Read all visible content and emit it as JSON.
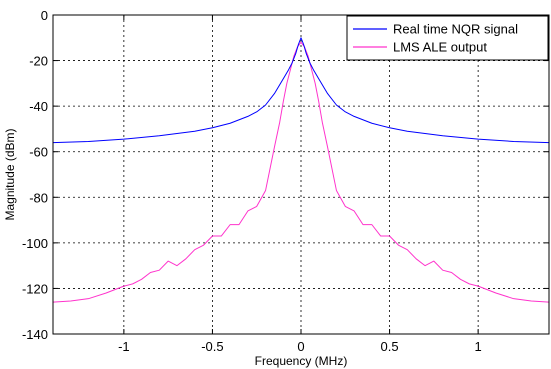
{
  "chart_data": {
    "type": "line",
    "title": "",
    "xlabel": "Frequency (MHz)",
    "ylabel": "Magnitude (dBm)",
    "xlim": [
      -1.4,
      1.4
    ],
    "ylim": [
      -140,
      0
    ],
    "x_ticks": [
      -1,
      -0.5,
      0,
      0.5,
      1
    ],
    "x_tick_labels": [
      "-1",
      "-0.5",
      "0",
      "0.5",
      "1"
    ],
    "y_ticks": [
      0,
      -20,
      -40,
      -60,
      -80,
      -100,
      -120,
      -140
    ],
    "y_tick_labels": [
      "0",
      "-20",
      "-40",
      "-60",
      "-80",
      "-100",
      "-120",
      "-140"
    ],
    "grid": true,
    "legend_position": "top-right",
    "series": [
      {
        "name": "Real time NQR signal",
        "color": "#0000ff",
        "x": [
          -1.4,
          -1.2,
          -1.0,
          -0.8,
          -0.6,
          -0.5,
          -0.4,
          -0.3,
          -0.25,
          -0.2,
          -0.15,
          -0.1,
          -0.07,
          -0.05,
          -0.03,
          -0.015,
          0,
          0.015,
          0.03,
          0.05,
          0.07,
          0.1,
          0.15,
          0.2,
          0.25,
          0.3,
          0.4,
          0.5,
          0.6,
          0.8,
          1.0,
          1.2,
          1.4
        ],
        "y": [
          -56,
          -55.5,
          -54.5,
          -53,
          -51,
          -49.5,
          -47.5,
          -44.5,
          -42.5,
          -39.5,
          -34.5,
          -28,
          -24,
          -21,
          -17,
          -13,
          -10,
          -13,
          -17,
          -21,
          -24,
          -28,
          -34.5,
          -39.5,
          -42.5,
          -44.5,
          -47.5,
          -49.5,
          -51,
          -53,
          -54.5,
          -55.5,
          -56
        ]
      },
      {
        "name": "LMS ALE output",
        "color": "#ff33cc",
        "x": [
          -1.4,
          -1.3,
          -1.2,
          -1.1,
          -1.0,
          -0.95,
          -0.9,
          -0.85,
          -0.8,
          -0.75,
          -0.7,
          -0.65,
          -0.6,
          -0.55,
          -0.5,
          -0.45,
          -0.4,
          -0.35,
          -0.3,
          -0.25,
          -0.2,
          -0.15,
          -0.12,
          -0.1,
          -0.08,
          -0.06,
          -0.04,
          -0.02,
          0,
          0.02,
          0.04,
          0.06,
          0.08,
          0.1,
          0.12,
          0.15,
          0.2,
          0.25,
          0.3,
          0.35,
          0.4,
          0.45,
          0.5,
          0.55,
          0.6,
          0.65,
          0.7,
          0.75,
          0.8,
          0.85,
          0.9,
          0.95,
          1.0,
          1.1,
          1.2,
          1.3,
          1.4
        ],
        "y": [
          -126,
          -125.5,
          -124.5,
          -122,
          -119,
          -118,
          -116,
          -113,
          -112,
          -108,
          -110,
          -107,
          -103,
          -101,
          -97,
          -97,
          -92,
          -92,
          -86,
          -84,
          -77,
          -58,
          -47,
          -38,
          -30,
          -24,
          -18,
          -14,
          -12,
          -14,
          -18,
          -24,
          -30,
          -38,
          -47,
          -58,
          -77,
          -84,
          -86,
          -92,
          -92,
          -97,
          -97,
          -101,
          -103,
          -107,
          -110,
          -108,
          -112,
          -113,
          -116,
          -118,
          -119,
          -122,
          -124.5,
          -125.5,
          -126
        ]
      }
    ]
  }
}
